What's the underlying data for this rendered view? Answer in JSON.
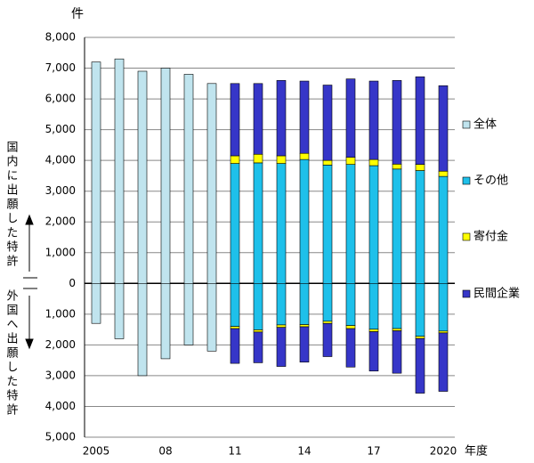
{
  "chart_data": {
    "type": "bar",
    "y_unit": "件",
    "x_unit": "年度",
    "annotation_top": "国内に出願した特許",
    "annotation_bottom": "外国へ出願した特許",
    "categories": [
      "2005",
      null,
      null,
      "08",
      null,
      null,
      "11",
      null,
      null,
      "14",
      null,
      null,
      "17",
      null,
      null,
      "2020"
    ],
    "series": [
      {
        "name": "全体",
        "color": "#c0e4ee",
        "values": [
          7200,
          7300,
          6900,
          7000,
          6800,
          6500,
          null,
          null,
          null,
          null,
          null,
          null,
          null,
          null,
          null,
          null
        ],
        "foreign_values": [
          -1300,
          -1800,
          -3000,
          -2450,
          -2000,
          -2200,
          null,
          null,
          null,
          null,
          null,
          null,
          null,
          null,
          null,
          null
        ]
      },
      {
        "name": "その他",
        "color": "#1ec0ea",
        "values": [
          null,
          null,
          null,
          null,
          null,
          null,
          3900,
          3920,
          3900,
          4030,
          3850,
          3870,
          3830,
          3720,
          3670,
          3480
        ],
        "foreign_values": [
          null,
          null,
          null,
          null,
          null,
          null,
          -1400,
          -1510,
          -1350,
          -1340,
          -1230,
          -1370,
          -1490,
          -1470,
          -1720,
          -1550
        ]
      },
      {
        "name": "寄付金",
        "color": "#ffff00",
        "values": [
          null,
          null,
          null,
          null,
          null,
          null,
          250,
          280,
          250,
          200,
          150,
          230,
          200,
          160,
          200,
          170
        ],
        "foreign_values": [
          null,
          null,
          null,
          null,
          null,
          null,
          -70,
          -70,
          -80,
          -70,
          -70,
          -100,
          -80,
          -70,
          -70,
          -60
        ]
      },
      {
        "name": "民間企業",
        "color": "#3636c8",
        "values": [
          null,
          null,
          null,
          null,
          null,
          null,
          2350,
          2300,
          2450,
          2350,
          2450,
          2550,
          2550,
          2720,
          2850,
          2780
        ],
        "foreign_values": [
          null,
          null,
          null,
          null,
          null,
          null,
          -1130,
          -1000,
          -1270,
          -1150,
          -1080,
          -1250,
          -1280,
          -1380,
          -1780,
          -1900
        ]
      }
    ],
    "ylim": [
      -5000,
      8000
    ],
    "yticks": [
      {
        "value": 8000,
        "label": "8,000"
      },
      {
        "value": 7000,
        "label": "7,000"
      },
      {
        "value": 6000,
        "label": "6,000"
      },
      {
        "value": 5000,
        "label": "5,000"
      },
      {
        "value": 4000,
        "label": "4,000"
      },
      {
        "value": 3000,
        "label": "3,000"
      },
      {
        "value": 2000,
        "label": "2,000"
      },
      {
        "value": 1000,
        "label": "1,000"
      },
      0,
      {
        "value": -1000,
        "label": "1,000"
      },
      {
        "value": -2000,
        "label": "2,000"
      },
      {
        "value": -3000,
        "label": "3,000"
      },
      {
        "value": -4000,
        "label": "4,000"
      },
      {
        "value": -5000,
        "label": "5,000"
      }
    ],
    "grid": true
  }
}
